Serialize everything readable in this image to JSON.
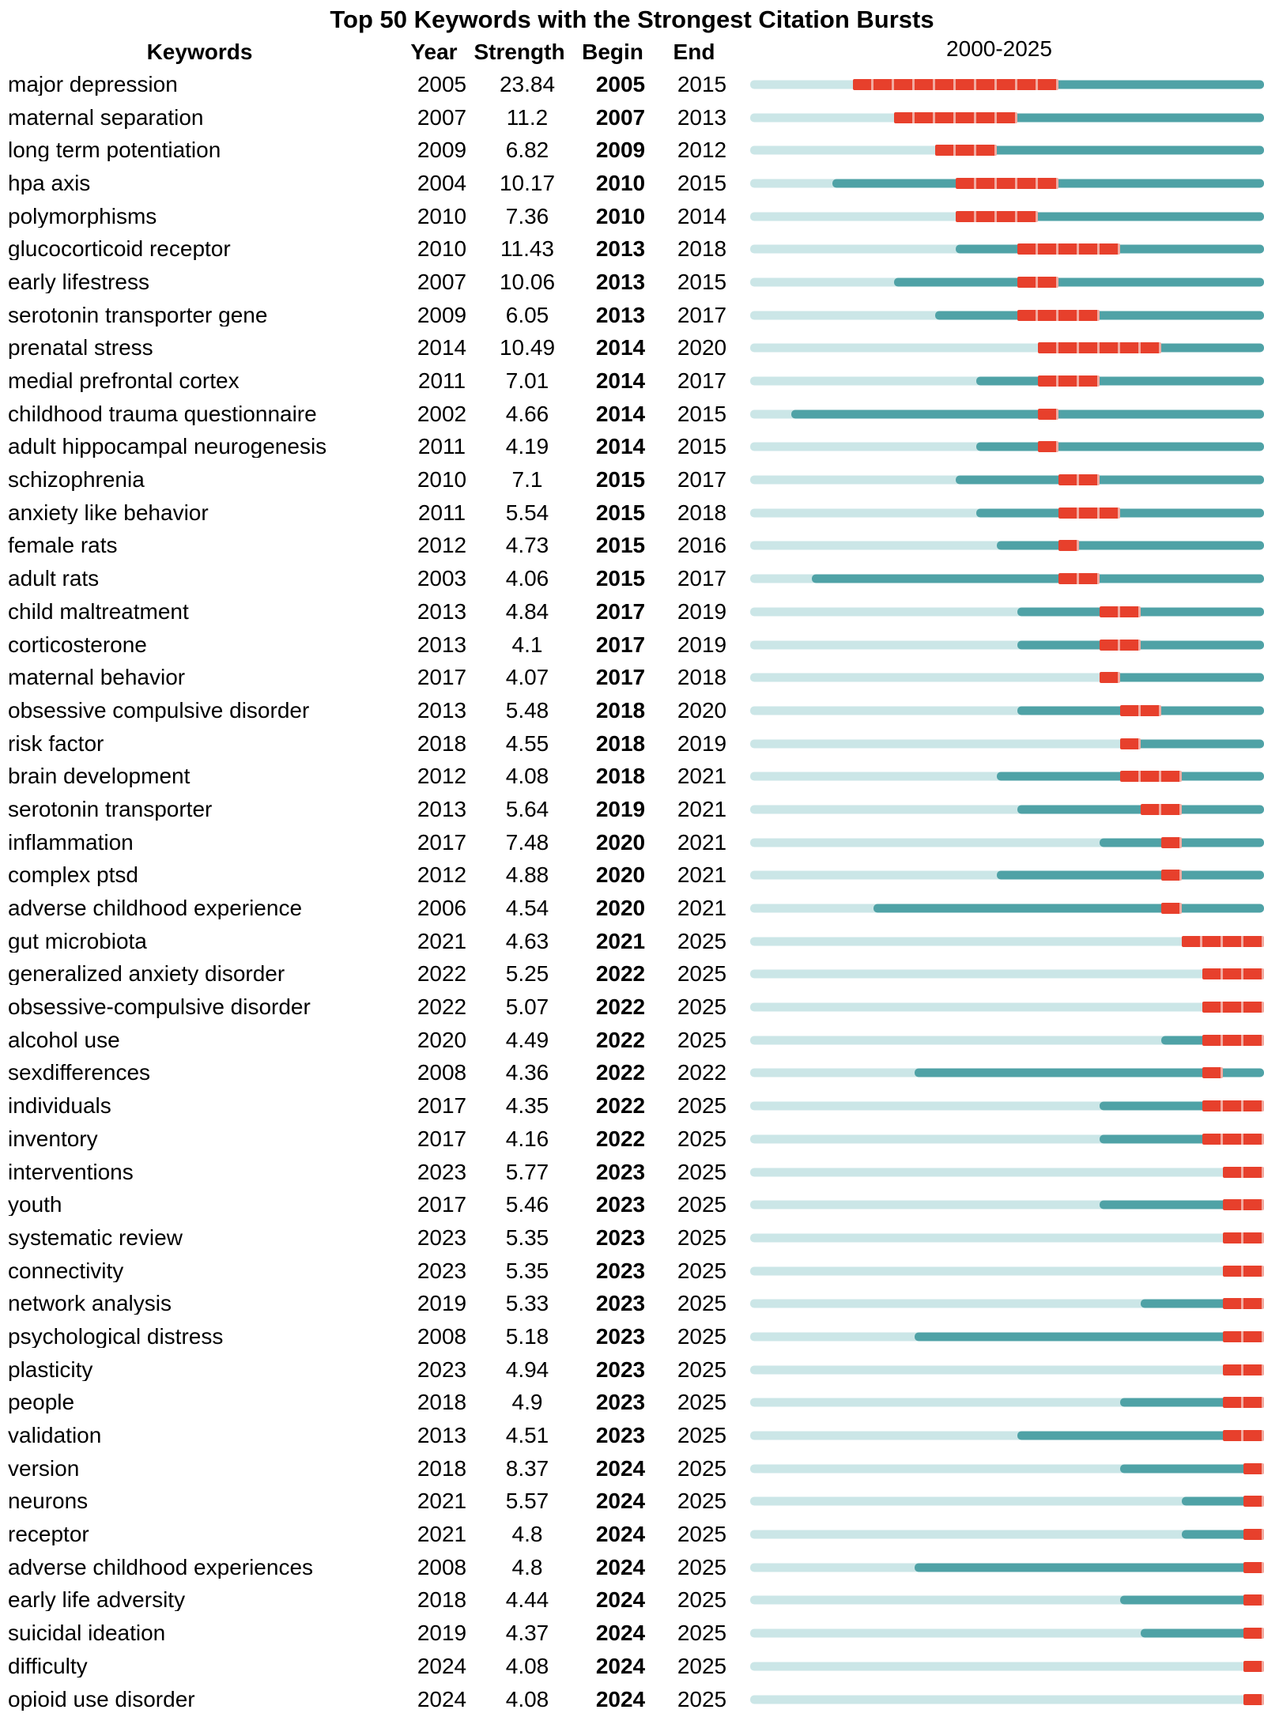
{
  "title": "Top 50 Keywords with the Strongest Citation Bursts",
  "header": {
    "keywords": "Keywords",
    "year": "Year",
    "strength": "Strength",
    "begin": "Begin",
    "end": "End",
    "range": "2000-2025"
  },
  "colors": {
    "timeline_base": "#cbe6e7",
    "active_period": "#4fa2a6",
    "burst": "#e7402c",
    "burst_gap": "#f2aaa0"
  },
  "chart_data": {
    "type": "table",
    "title": "Top 50 Keywords with the Strongest Citation Bursts",
    "columns": [
      "Keywords",
      "Year",
      "Strength",
      "Begin",
      "End"
    ],
    "x_range": [
      2000,
      2025
    ],
    "timeline_label": "2000-2025",
    "rows": [
      {
        "keyword": "major depression",
        "year": 2005,
        "strength": "23.84",
        "begin": 2005,
        "end": 2015
      },
      {
        "keyword": "maternal separation",
        "year": 2007,
        "strength": "11.2",
        "begin": 2007,
        "end": 2013
      },
      {
        "keyword": "long term potentiation",
        "year": 2009,
        "strength": "6.82",
        "begin": 2009,
        "end": 2012
      },
      {
        "keyword": "hpa axis",
        "year": 2004,
        "strength": "10.17",
        "begin": 2010,
        "end": 2015
      },
      {
        "keyword": "polymorphisms",
        "year": 2010,
        "strength": "7.36",
        "begin": 2010,
        "end": 2014
      },
      {
        "keyword": "glucocorticoid receptor",
        "year": 2010,
        "strength": "11.43",
        "begin": 2013,
        "end": 2018
      },
      {
        "keyword": "early lifestress",
        "year": 2007,
        "strength": "10.06",
        "begin": 2013,
        "end": 2015
      },
      {
        "keyword": "serotonin transporter gene",
        "year": 2009,
        "strength": "6.05",
        "begin": 2013,
        "end": 2017
      },
      {
        "keyword": "prenatal stress",
        "year": 2014,
        "strength": "10.49",
        "begin": 2014,
        "end": 2020
      },
      {
        "keyword": "medial prefrontal cortex",
        "year": 2011,
        "strength": "7.01",
        "begin": 2014,
        "end": 2017
      },
      {
        "keyword": "childhood trauma questionnaire",
        "year": 2002,
        "strength": "4.66",
        "begin": 2014,
        "end": 2015
      },
      {
        "keyword": "adult hippocampal neurogenesis",
        "year": 2011,
        "strength": "4.19",
        "begin": 2014,
        "end": 2015
      },
      {
        "keyword": "schizophrenia",
        "year": 2010,
        "strength": "7.1",
        "begin": 2015,
        "end": 2017
      },
      {
        "keyword": "anxiety like behavior",
        "year": 2011,
        "strength": "5.54",
        "begin": 2015,
        "end": 2018
      },
      {
        "keyword": "female rats",
        "year": 2012,
        "strength": "4.73",
        "begin": 2015,
        "end": 2016
      },
      {
        "keyword": "adult rats",
        "year": 2003,
        "strength": "4.06",
        "begin": 2015,
        "end": 2017
      },
      {
        "keyword": "child maltreatment",
        "year": 2013,
        "strength": "4.84",
        "begin": 2017,
        "end": 2019
      },
      {
        "keyword": "corticosterone",
        "year": 2013,
        "strength": "4.1",
        "begin": 2017,
        "end": 2019
      },
      {
        "keyword": "maternal behavior",
        "year": 2017,
        "strength": "4.07",
        "begin": 2017,
        "end": 2018
      },
      {
        "keyword": "obsessive compulsive disorder",
        "year": 2013,
        "strength": "5.48",
        "begin": 2018,
        "end": 2020
      },
      {
        "keyword": "risk factor",
        "year": 2018,
        "strength": "4.55",
        "begin": 2018,
        "end": 2019
      },
      {
        "keyword": "brain development",
        "year": 2012,
        "strength": "4.08",
        "begin": 2018,
        "end": 2021
      },
      {
        "keyword": "serotonin transporter",
        "year": 2013,
        "strength": "5.64",
        "begin": 2019,
        "end": 2021
      },
      {
        "keyword": "inflammation",
        "year": 2017,
        "strength": "7.48",
        "begin": 2020,
        "end": 2021
      },
      {
        "keyword": "complex ptsd",
        "year": 2012,
        "strength": "4.88",
        "begin": 2020,
        "end": 2021
      },
      {
        "keyword": "adverse childhood experience",
        "year": 2006,
        "strength": "4.54",
        "begin": 2020,
        "end": 2021
      },
      {
        "keyword": "gut microbiota",
        "year": 2021,
        "strength": "4.63",
        "begin": 2021,
        "end": 2025
      },
      {
        "keyword": "generalized anxiety disorder",
        "year": 2022,
        "strength": "5.25",
        "begin": 2022,
        "end": 2025
      },
      {
        "keyword": "obsessive-compulsive disorder",
        "year": 2022,
        "strength": "5.07",
        "begin": 2022,
        "end": 2025
      },
      {
        "keyword": "alcohol use",
        "year": 2020,
        "strength": "4.49",
        "begin": 2022,
        "end": 2025
      },
      {
        "keyword": "sexdifferences",
        "year": 2008,
        "strength": "4.36",
        "begin": 2022,
        "end": 2022
      },
      {
        "keyword": "individuals",
        "year": 2017,
        "strength": "4.35",
        "begin": 2022,
        "end": 2025
      },
      {
        "keyword": "inventory",
        "year": 2017,
        "strength": "4.16",
        "begin": 2022,
        "end": 2025
      },
      {
        "keyword": "interventions",
        "year": 2023,
        "strength": "5.77",
        "begin": 2023,
        "end": 2025
      },
      {
        "keyword": "youth",
        "year": 2017,
        "strength": "5.46",
        "begin": 2023,
        "end": 2025
      },
      {
        "keyword": "systematic review",
        "year": 2023,
        "strength": "5.35",
        "begin": 2023,
        "end": 2025
      },
      {
        "keyword": "connectivity",
        "year": 2023,
        "strength": "5.35",
        "begin": 2023,
        "end": 2025
      },
      {
        "keyword": "network analysis",
        "year": 2019,
        "strength": "5.33",
        "begin": 2023,
        "end": 2025
      },
      {
        "keyword": "psychological distress",
        "year": 2008,
        "strength": "5.18",
        "begin": 2023,
        "end": 2025
      },
      {
        "keyword": "plasticity",
        "year": 2023,
        "strength": "4.94",
        "begin": 2023,
        "end": 2025
      },
      {
        "keyword": "people",
        "year": 2018,
        "strength": "4.9",
        "begin": 2023,
        "end": 2025
      },
      {
        "keyword": "validation",
        "year": 2013,
        "strength": "4.51",
        "begin": 2023,
        "end": 2025
      },
      {
        "keyword": "version",
        "year": 2018,
        "strength": "8.37",
        "begin": 2024,
        "end": 2025
      },
      {
        "keyword": "neurons",
        "year": 2021,
        "strength": "5.57",
        "begin": 2024,
        "end": 2025
      },
      {
        "keyword": "receptor",
        "year": 2021,
        "strength": "4.8",
        "begin": 2024,
        "end": 2025
      },
      {
        "keyword": "adverse childhood experiences",
        "year": 2008,
        "strength": "4.8",
        "begin": 2024,
        "end": 2025
      },
      {
        "keyword": "early life adversity",
        "year": 2018,
        "strength": "4.44",
        "begin": 2024,
        "end": 2025
      },
      {
        "keyword": "suicidal ideation",
        "year": 2019,
        "strength": "4.37",
        "begin": 2024,
        "end": 2025
      },
      {
        "keyword": "difficulty",
        "year": 2024,
        "strength": "4.08",
        "begin": 2024,
        "end": 2025
      },
      {
        "keyword": "opioid use disorder",
        "year": 2024,
        "strength": "4.08",
        "begin": 2024,
        "end": 2025
      }
    ]
  }
}
